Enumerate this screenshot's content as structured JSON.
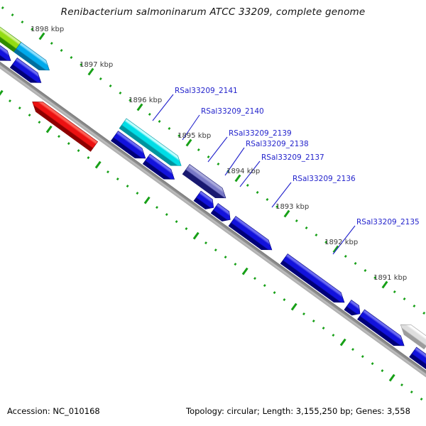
{
  "title": "Renibacterium salmoninarum ATCC 33209, complete genome",
  "footer": {
    "accession": "Accession: NC_010168",
    "stats": "Topology: circular; Length: 3,155,250 bp; Genes: 3,558"
  },
  "ruler": {
    "unit": "kbp",
    "major_ticks_kbp": [
      1898,
      1897,
      1896,
      1895,
      1894,
      1893,
      1892,
      1891
    ],
    "major_tick_labels": [
      "1898 kbp",
      "1897 kbp",
      "1896 kbp",
      "1895 kbp",
      "1894 kbp",
      "1893 kbp",
      "1892 kbp",
      "1891 kbp"
    ],
    "minor_tick_interval_kbp": 0.2
  },
  "gene_labels": [
    "RSal33209_2141",
    "RSal33209_2140",
    "RSal33209_2139",
    "RSal33209_2138",
    "RSal33209_2137",
    "RSal33209_2136",
    "RSal33209_2135"
  ],
  "genes": [
    {
      "color": "chartreuse",
      "track": "outer",
      "start_kbp": 1899.2,
      "end_kbp": 1898.22,
      "head": "none"
    },
    {
      "color": "deepsky",
      "track": "outer",
      "start_kbp": 1898.22,
      "end_kbp": 1897.57,
      "head": "right"
    },
    {
      "color": "aqua",
      "track": "outer",
      "start_kbp": 1896.07,
      "end_kbp": 1894.88,
      "head": "right"
    },
    {
      "color": "slate",
      "track": "outer",
      "start_kbp": 1894.78,
      "end_kbp": 1893.97,
      "head": "right"
    },
    {
      "color": "lightgray",
      "track": "outer",
      "start_kbp": 1890.4,
      "end_kbp": 1889.85,
      "head": "left"
    },
    {
      "color": "blue",
      "track": "inner",
      "start_kbp": 1899.3,
      "end_kbp": 1898.18,
      "head": "right"
    },
    {
      "color": "blue",
      "track": "inner",
      "start_kbp": 1898.12,
      "end_kbp": 1897.56,
      "head": "right"
    },
    {
      "color": "blue",
      "track": "inner",
      "start_kbp": 1896.06,
      "end_kbp": 1895.43,
      "head": "right"
    },
    {
      "color": "blue",
      "track": "inner",
      "start_kbp": 1895.41,
      "end_kbp": 1894.84,
      "head": "right"
    },
    {
      "color": "blue",
      "track": "inner",
      "start_kbp": 1894.37,
      "end_kbp": 1894.04,
      "head": "right"
    },
    {
      "color": "blue",
      "track": "inner",
      "start_kbp": 1894.02,
      "end_kbp": 1893.7,
      "head": "right"
    },
    {
      "color": "blue",
      "track": "inner",
      "start_kbp": 1893.66,
      "end_kbp": 1892.85,
      "head": "right"
    },
    {
      "color": "blue",
      "track": "inner",
      "start_kbp": 1892.6,
      "end_kbp": 1891.37,
      "head": "right"
    },
    {
      "color": "blue",
      "track": "inner",
      "start_kbp": 1891.3,
      "end_kbp": 1891.05,
      "head": "right"
    },
    {
      "color": "blue",
      "track": "inner",
      "start_kbp": 1891.03,
      "end_kbp": 1890.15,
      "head": "right"
    },
    {
      "color": "blue",
      "track": "inner",
      "start_kbp": 1889.97,
      "end_kbp": 1889.38,
      "head": "right"
    },
    {
      "color": "red",
      "track": "reverse",
      "start_kbp": 1897.49,
      "end_kbp": 1896.23,
      "head": "left"
    }
  ],
  "colors": {
    "background": "#FFFFFF",
    "backbone_top": "#7A7A7A",
    "backbone_mid": "#939393",
    "backbone_bottom": "#BFBFBF",
    "tick_green": "#17A017",
    "ruler_text": "#3C3C3C",
    "annotation_blue": "#2323CC",
    "title_text": "#141414",
    "footer_text": "#000000",
    "gene_palette": {
      "blue": {
        "hi": "#6B6BF2",
        "body": "#1212DC",
        "lo": "#000078"
      },
      "deepsky": {
        "hi": "#8ADFFF",
        "body": "#00A9EC",
        "lo": "#006E9E"
      },
      "aqua": {
        "hi": "#BFFFFF",
        "body": "#00DDE6",
        "lo": "#00939E"
      },
      "chartreuse": {
        "hi": "#D3F28E",
        "body": "#93DC12",
        "lo": "#2F8A00"
      },
      "slate": {
        "hi": "#ABABDD",
        "body": "#7878C6",
        "lo": "#191970"
      },
      "red": {
        "hi": "#FF6155",
        "body": "#EC1111",
        "lo": "#8E0000"
      },
      "lightgray": {
        "hi": "#FDFDFD",
        "body": "#DEDEDE",
        "lo": "#9C9C9C"
      }
    }
  }
}
